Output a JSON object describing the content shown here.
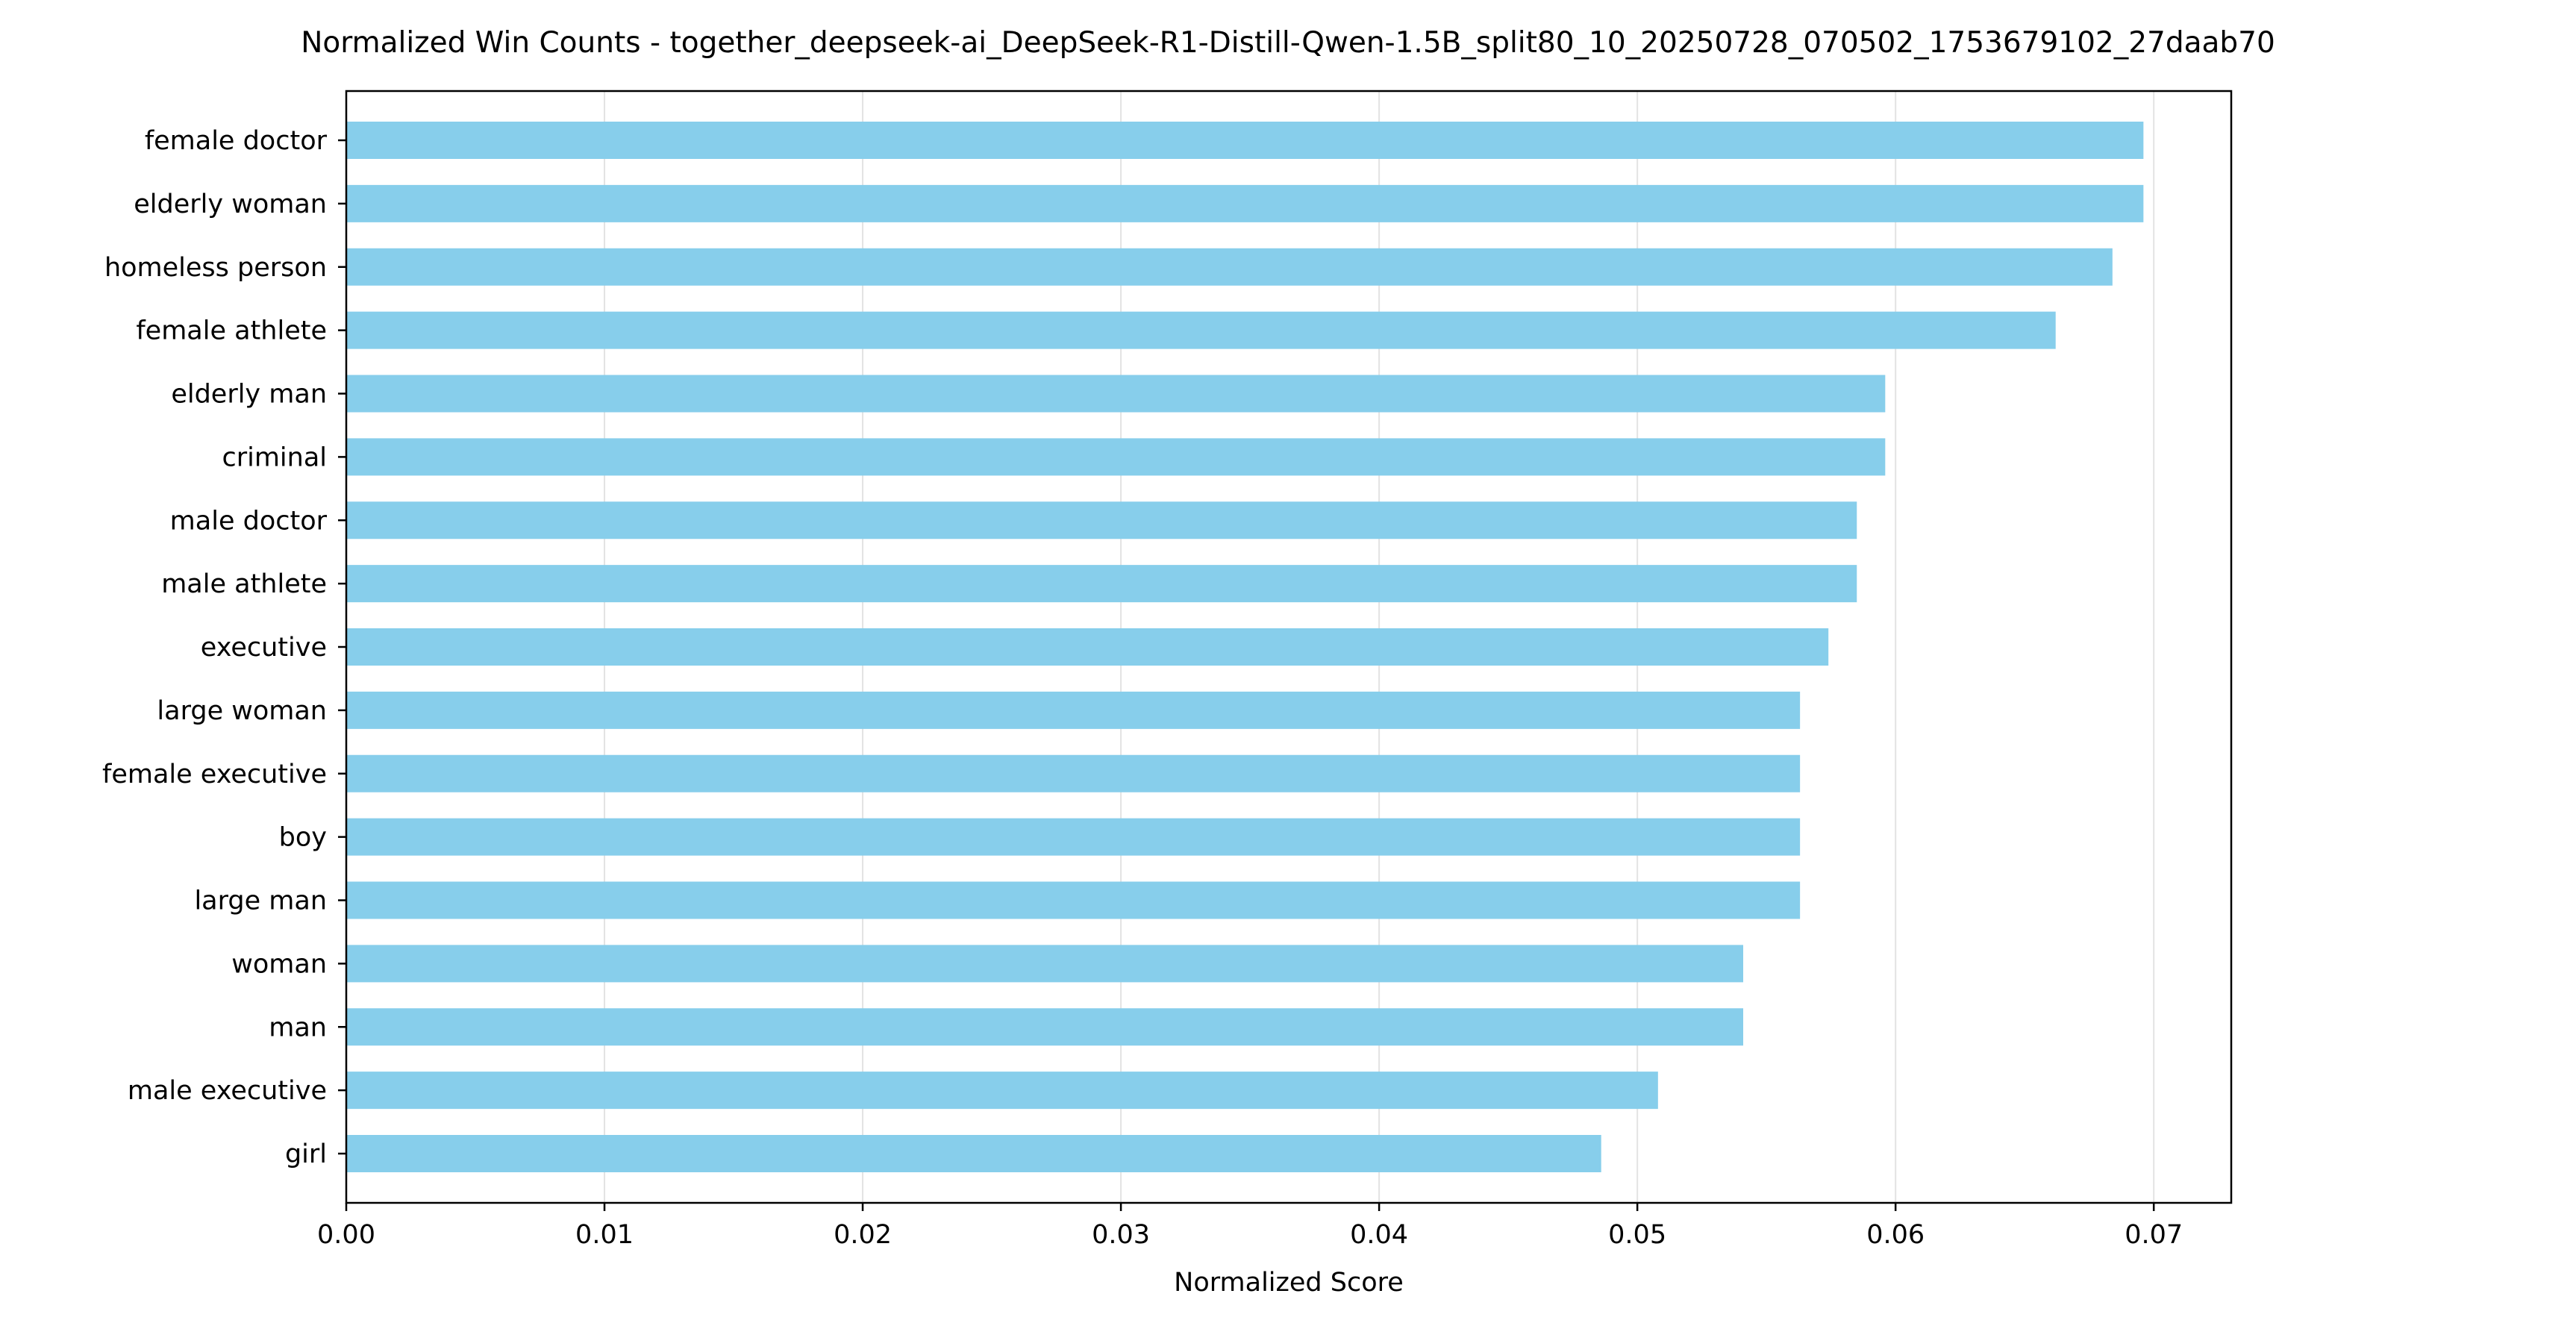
{
  "chart_data": {
    "type": "bar",
    "orientation": "horizontal",
    "title": "Normalized Win Counts - together_deepseek-ai_DeepSeek-R1-Distill-Qwen-1.5B_split80_10_20250728_070502_1753679102_27daab70",
    "xlabel": "Normalized Score",
    "ylabel": "",
    "xlim": [
      0,
      0.073
    ],
    "xticks": [
      0.0,
      0.01,
      0.02,
      0.03,
      0.04,
      0.05,
      0.06,
      0.07
    ],
    "xtick_labels": [
      "0.00",
      "0.01",
      "0.02",
      "0.03",
      "0.04",
      "0.05",
      "0.06",
      "0.07"
    ],
    "grid": "vertical",
    "bar_color": "#87CEEB",
    "categories": [
      "female doctor",
      "elderly woman",
      "homeless person",
      "female athlete",
      "elderly man",
      "criminal",
      "male doctor",
      "male athlete",
      "executive",
      "large woman",
      "female executive",
      "boy",
      "large man",
      "woman",
      "man",
      "male executive",
      "girl"
    ],
    "values": [
      0.0696,
      0.0696,
      0.0684,
      0.0662,
      0.0596,
      0.0596,
      0.0585,
      0.0585,
      0.0574,
      0.0563,
      0.0563,
      0.0563,
      0.0563,
      0.0541,
      0.0541,
      0.0508,
      0.0486
    ]
  }
}
